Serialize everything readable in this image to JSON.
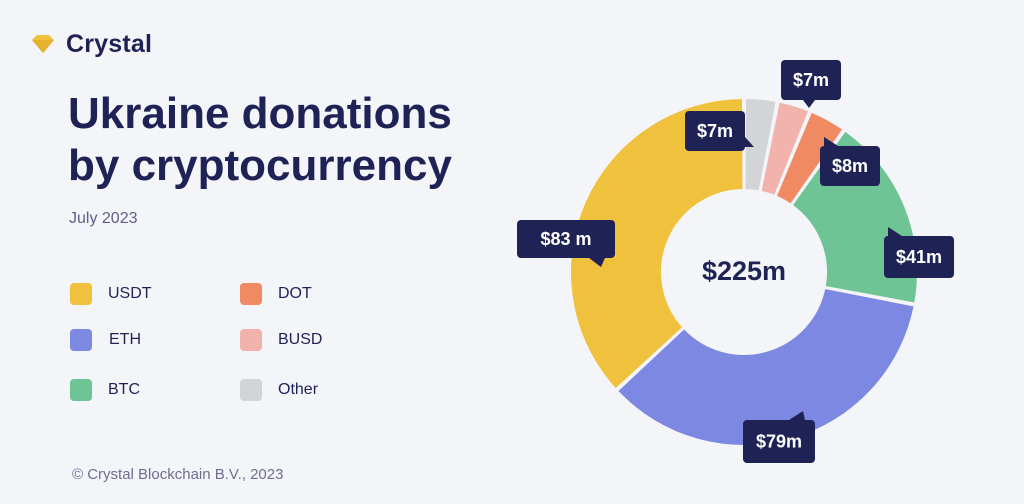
{
  "brand": {
    "name": "Crystal",
    "logo_icon": "diamond-icon",
    "logo_color": "#f0c13c"
  },
  "title": "Ukraine donations by cryptocurrency",
  "subtitle": "July 2023",
  "footer": "© Crystal Blockchain B.V., 2023",
  "colors": {
    "USDT": "#f0c13c",
    "ETH": "#7d88e3",
    "BTC": "#6ec495",
    "DOT": "#ef8a63",
    "BUSD": "#f2b3ad",
    "Other": "#d2d4d8",
    "callout": "#1f2255"
  },
  "legend": [
    {
      "label": "USDT",
      "color": "#f0c13c"
    },
    {
      "label": "ETH",
      "color": "#7d88e3"
    },
    {
      "label": "BTC",
      "color": "#6ec495"
    },
    {
      "label": "DOT",
      "color": "#ef8a63"
    },
    {
      "label": "BUSD",
      "color": "#f2b3ad"
    },
    {
      "label": "Other",
      "color": "#d2d4d8"
    }
  ],
  "chart_data": {
    "type": "pie",
    "donut": true,
    "title": "Ukraine donations by cryptocurrency",
    "subtitle": "July 2023",
    "center_label": "$225m",
    "unit": "USD millions",
    "categories": [
      "Other",
      "BUSD",
      "DOT",
      "BTC",
      "ETH",
      "USDT"
    ],
    "values": [
      7,
      7,
      8,
      41,
      79,
      83
    ],
    "data_labels": [
      "$7m",
      "$7m",
      "$8m",
      "$41m",
      "$79m",
      "$83 m"
    ],
    "colors": [
      "#d2d4d8",
      "#f2b3ad",
      "#ef8a63",
      "#6ec495",
      "#7d88e3",
      "#f0c13c"
    ],
    "legend_position": "left"
  }
}
